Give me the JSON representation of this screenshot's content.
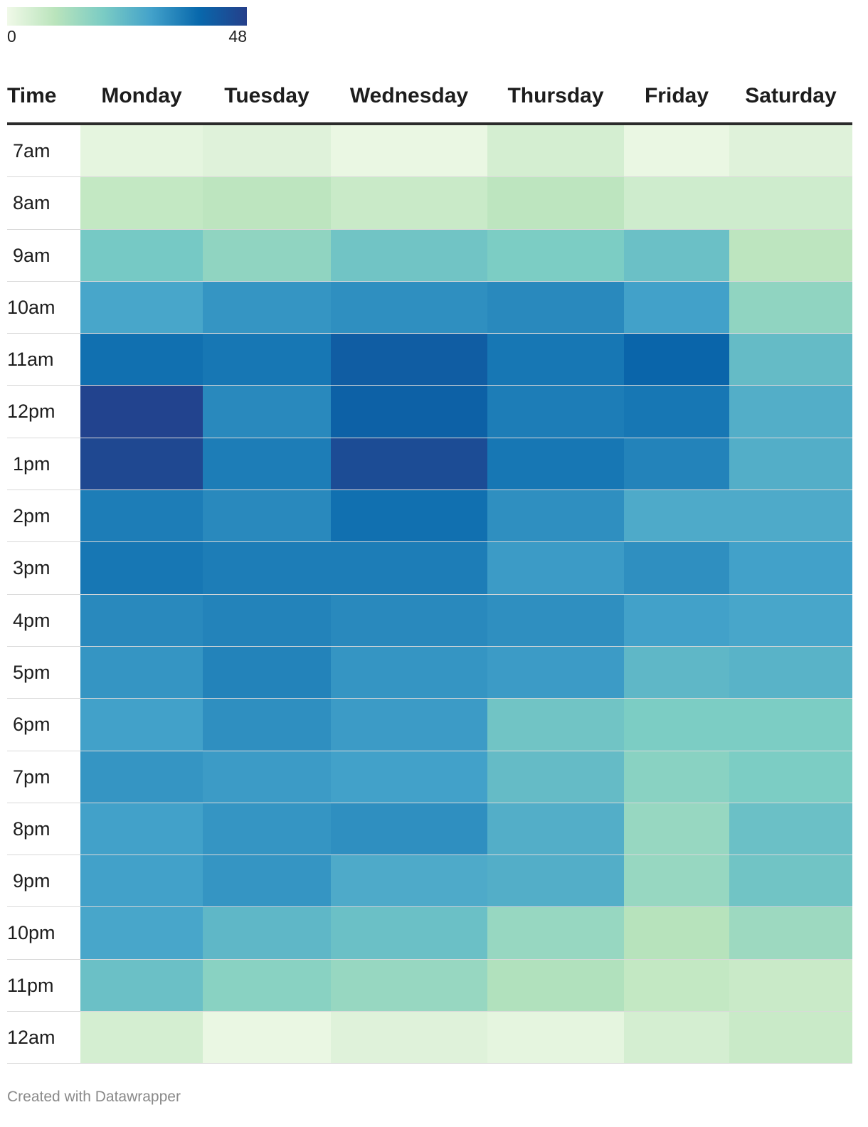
{
  "legend": {
    "min_label": "0",
    "max_label": "48"
  },
  "footer": {
    "credit": "Created with Datawrapper"
  },
  "chart_data": {
    "type": "heatmap",
    "row_header": "Time",
    "columns": [
      "Monday",
      "Tuesday",
      "Wednesday",
      "Thursday",
      "Friday",
      "Saturday"
    ],
    "rows": [
      "7am",
      "8am",
      "9am",
      "10am",
      "11am",
      "12pm",
      "1pm",
      "2pm",
      "3pm",
      "4pm",
      "5pm",
      "6pm",
      "7pm",
      "8pm",
      "9pm",
      "10pm",
      "11pm",
      "12am"
    ],
    "values": [
      [
        2,
        3,
        1,
        5,
        1,
        3
      ],
      [
        8,
        9,
        7,
        9,
        6,
        6
      ],
      [
        20,
        16,
        21,
        19,
        22,
        9
      ],
      [
        28,
        31,
        32,
        33,
        29,
        16
      ],
      [
        37,
        36,
        41,
        36,
        39,
        23
      ],
      [
        47,
        33,
        40,
        35,
        36,
        26
      ],
      [
        46,
        35,
        45,
        36,
        34,
        26
      ],
      [
        35,
        33,
        37,
        32,
        27,
        27
      ],
      [
        36,
        35,
        35,
        30,
        32,
        29
      ],
      [
        33,
        34,
        33,
        32,
        29,
        28
      ],
      [
        31,
        34,
        31,
        30,
        24,
        25
      ],
      [
        29,
        32,
        30,
        21,
        19,
        19
      ],
      [
        31,
        30,
        29,
        23,
        17,
        19
      ],
      [
        29,
        31,
        32,
        26,
        15,
        22
      ],
      [
        29,
        31,
        27,
        26,
        15,
        21
      ],
      [
        28,
        24,
        22,
        15,
        10,
        14
      ],
      [
        22,
        17,
        15,
        11,
        8,
        7
      ],
      [
        5,
        1,
        3,
        2,
        5,
        7
      ]
    ],
    "scale": {
      "min": 0,
      "max": 48
    },
    "colors": [
      "#f0f9e8",
      "#bae4bc",
      "#7bccc4",
      "#43a2ca",
      "#0868ac",
      "#253f8a"
    ]
  }
}
